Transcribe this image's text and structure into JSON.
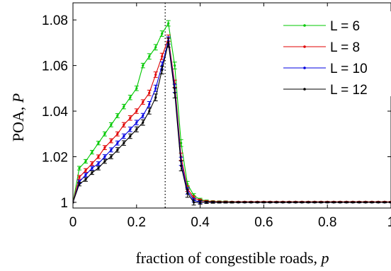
{
  "chart_data": {
    "type": "line",
    "xlabel_text": "fraction of congestible roads, ",
    "xlabel_var": "p",
    "ylabel_text": "POA, ",
    "ylabel_var": "P",
    "xlim": [
      0,
      1
    ],
    "ylim": [
      0.9975,
      1.0875
    ],
    "xticks": [
      0,
      0.2,
      0.4,
      0.6,
      0.8,
      1
    ],
    "xtick_labels": [
      "0",
      "0.2",
      "0.4",
      "0.6",
      "0.8",
      "1"
    ],
    "yticks": [
      1,
      1.02,
      1.04,
      1.06,
      1.08
    ],
    "ytick_labels": [
      "1",
      "1.02",
      "1.04",
      "1.06",
      "1.08"
    ],
    "vline_x": 0.29,
    "legend_position": "top-right",
    "series": [
      {
        "name": "L = 6",
        "color": "#00c800",
        "x": [
          0,
          0.02,
          0.04,
          0.06,
          0.08,
          0.1,
          0.12,
          0.14,
          0.16,
          0.18,
          0.2,
          0.22,
          0.24,
          0.26,
          0.28,
          0.3,
          0.32,
          0.34,
          0.36,
          0.38,
          0.4,
          0.42,
          0.44,
          0.46,
          0.48,
          0.5,
          0.52,
          0.54,
          0.56,
          0.58,
          0.6,
          0.62,
          0.64,
          0.66,
          0.68,
          0.7,
          0.72,
          0.74,
          0.76,
          0.78,
          0.8,
          0.82,
          0.84,
          0.86,
          0.88,
          0.9,
          0.92,
          0.94,
          0.96,
          0.98,
          1
        ],
        "y": [
          1.0,
          1.015,
          1.018,
          1.022,
          1.026,
          1.03,
          1.034,
          1.038,
          1.042,
          1.046,
          1.05,
          1.06,
          1.064,
          1.068,
          1.074,
          1.0785,
          1.06,
          1.026,
          1.008,
          1.003,
          1.0012,
          1.0006,
          1.0004,
          1.0003,
          1.0003,
          1.0002,
          1.0002,
          1.0002,
          1.0002,
          1.0002,
          1.0002,
          1.0002,
          1.0002,
          1.0002,
          1.0002,
          1.0002,
          1.0002,
          1.0002,
          1.0002,
          1.0002,
          1.0002,
          1.0002,
          1.0002,
          1.0002,
          1.0002,
          1.0002,
          1.0002,
          1.0002,
          1.0002,
          1.0002,
          1.0002
        ],
        "err": [
          0,
          0.0008,
          0.0008,
          0.0008,
          0.0008,
          0.0009,
          0.0009,
          0.0009,
          0.001,
          0.001,
          0.001,
          0.001,
          0.0012,
          0.0012,
          0.0012,
          0.0012,
          0.0015,
          0.0015,
          0.0012,
          0.0008,
          0.0006,
          0.0004,
          0.0003,
          0.0003,
          0.0003,
          0.0002,
          0.0002,
          0.0002,
          0.0002,
          0.0002,
          0.0002,
          0.0002,
          0.0002,
          0.0002,
          0.0002,
          0.0002,
          0.0002,
          0.0002,
          0.0002,
          0.0002,
          0.0002,
          0.0002,
          0.0002,
          0.0002,
          0.0002,
          0.0002,
          0.0002,
          0.0002,
          0.0002,
          0.0002,
          0.0002
        ]
      },
      {
        "name": "L = 8",
        "color": "#e00000",
        "x": [
          0,
          0.02,
          0.04,
          0.06,
          0.08,
          0.1,
          0.12,
          0.14,
          0.16,
          0.18,
          0.2,
          0.22,
          0.24,
          0.26,
          0.28,
          0.3,
          0.32,
          0.34,
          0.36,
          0.38,
          0.4,
          0.42,
          0.44,
          0.46,
          0.48,
          0.5,
          0.52,
          0.54,
          0.56,
          0.58,
          0.6,
          0.62,
          0.64,
          0.66,
          0.68,
          0.7,
          0.72,
          0.74,
          0.76,
          0.78,
          0.8,
          0.82,
          0.84,
          0.86,
          0.88,
          0.9,
          0.92,
          0.94,
          0.96,
          0.98,
          1
        ],
        "y": [
          1.0,
          1.011,
          1.014,
          1.017,
          1.02,
          1.024,
          1.027,
          1.03,
          1.034,
          1.037,
          1.04,
          1.044,
          1.048,
          1.056,
          1.064,
          1.072,
          1.052,
          1.02,
          1.006,
          1.002,
          1.0008,
          1.0004,
          1.0003,
          1.0002,
          1.0002,
          1.0002,
          1.0002,
          1.0002,
          1.0002,
          1.0002,
          1.0002,
          1.0002,
          1.0002,
          1.0002,
          1.0002,
          1.0002,
          1.0002,
          1.0002,
          1.0002,
          1.0002,
          1.0002,
          1.0002,
          1.0002,
          1.0002,
          1.0002,
          1.0002,
          1.0002,
          1.0002,
          1.0002,
          1.0002,
          1.0002
        ],
        "err": [
          0,
          0.0008,
          0.0008,
          0.0008,
          0.0008,
          0.0009,
          0.0009,
          0.0009,
          0.001,
          0.001,
          0.001,
          0.001,
          0.0012,
          0.0012,
          0.0014,
          0.0014,
          0.0016,
          0.0016,
          0.0012,
          0.0008,
          0.0006,
          0.0004,
          0.0003,
          0.0003,
          0.0003,
          0.0002,
          0.0002,
          0.0002,
          0.0002,
          0.0002,
          0.0002,
          0.0002,
          0.0002,
          0.0002,
          0.0002,
          0.0002,
          0.0002,
          0.0002,
          0.0002,
          0.0002,
          0.0002,
          0.0002,
          0.0002,
          0.0002,
          0.0002,
          0.0002,
          0.0002,
          0.0002,
          0.0002,
          0.0002,
          0.0002
        ]
      },
      {
        "name": "L = 10",
        "color": "#0000e0",
        "x": [
          0,
          0.02,
          0.04,
          0.06,
          0.08,
          0.1,
          0.12,
          0.14,
          0.16,
          0.18,
          0.2,
          0.22,
          0.24,
          0.26,
          0.28,
          0.3,
          0.32,
          0.34,
          0.36,
          0.38,
          0.4,
          0.42,
          0.44,
          0.46,
          0.48,
          0.5,
          0.52,
          0.54,
          0.56,
          0.58,
          0.6,
          0.62,
          0.64,
          0.66,
          0.68,
          0.7,
          0.72,
          0.74,
          0.76,
          0.78,
          0.8,
          0.82,
          0.84,
          0.86,
          0.88,
          0.9,
          0.92,
          0.94,
          0.96,
          0.98,
          1
        ],
        "y": [
          1.0,
          1.009,
          1.012,
          1.015,
          1.017,
          1.02,
          1.023,
          1.026,
          1.029,
          1.032,
          1.035,
          1.038,
          1.043,
          1.05,
          1.06,
          1.071,
          1.05,
          1.018,
          1.005,
          1.001,
          1.0,
          1.0,
          1.0,
          1.0,
          1.0,
          1.0,
          1.0,
          1.0,
          1.0,
          1.0,
          1.0,
          1.0,
          1.0,
          1.0,
          1.0,
          1.0,
          1.0,
          1.0,
          1.0,
          1.0,
          1.0,
          1.0,
          1.0,
          1.0,
          1.0,
          1.0,
          1.0,
          1.0,
          1.0,
          1.0,
          1.0
        ],
        "err": [
          0,
          0.0008,
          0.0008,
          0.0008,
          0.0008,
          0.0009,
          0.0009,
          0.0009,
          0.001,
          0.001,
          0.001,
          0.001,
          0.0012,
          0.0014,
          0.0016,
          0.0016,
          0.0018,
          0.0018,
          0.0014,
          0.0008,
          0.0006,
          0.0004,
          0.0003,
          0.0003,
          0.0003,
          0.0002,
          0.0002,
          0.0002,
          0.0002,
          0.0002,
          0.0002,
          0.0002,
          0.0002,
          0.0002,
          0.0002,
          0.0002,
          0.0002,
          0.0002,
          0.0002,
          0.0002,
          0.0002,
          0.0002,
          0.0002,
          0.0002,
          0.0002,
          0.0002,
          0.0002,
          0.0002,
          0.0002,
          0.0002,
          0.0002
        ]
      },
      {
        "name": "L = 12",
        "color": "#000000",
        "x": [
          0,
          0.02,
          0.04,
          0.06,
          0.08,
          0.1,
          0.12,
          0.14,
          0.16,
          0.18,
          0.2,
          0.22,
          0.24,
          0.26,
          0.28,
          0.3,
          0.32,
          0.34,
          0.36,
          0.38,
          0.4,
          0.42,
          0.44,
          0.46,
          0.48,
          0.5,
          0.52,
          0.54,
          0.56,
          0.58,
          0.6,
          0.62,
          0.64,
          0.66,
          0.68,
          0.7,
          0.72,
          0.74,
          0.76,
          0.78,
          0.8,
          0.82,
          0.84,
          0.86,
          0.88,
          0.9,
          0.92,
          0.94,
          0.96,
          0.98,
          1
        ],
        "y": [
          1.0,
          1.008,
          1.01,
          1.013,
          1.015,
          1.018,
          1.02,
          1.023,
          1.026,
          1.029,
          1.032,
          1.035,
          1.04,
          1.046,
          1.058,
          1.07,
          1.048,
          1.016,
          1.004,
          1.0,
          1.0,
          1.0,
          1.0,
          1.0,
          1.0,
          1.0,
          1.0,
          1.0,
          1.0,
          1.0,
          1.0,
          1.0,
          1.0,
          1.0,
          1.0,
          1.0,
          1.0,
          1.0,
          1.0,
          1.0,
          1.0,
          1.0,
          1.0,
          1.0,
          1.0,
          1.0,
          1.0,
          1.0,
          1.0,
          1.0,
          1.0
        ],
        "err": [
          0,
          0.0008,
          0.0008,
          0.0008,
          0.0008,
          0.0009,
          0.0009,
          0.001,
          0.001,
          0.001,
          0.0011,
          0.0012,
          0.0013,
          0.0015,
          0.0017,
          0.002,
          0.0022,
          0.0022,
          0.0018,
          0.0012,
          0.0008,
          0.0005,
          0.0004,
          0.0003,
          0.0003,
          0.0003,
          0.0002,
          0.0002,
          0.0002,
          0.0002,
          0.0002,
          0.0002,
          0.0002,
          0.0002,
          0.0002,
          0.0002,
          0.0002,
          0.0002,
          0.0002,
          0.0002,
          0.0002,
          0.0002,
          0.0002,
          0.0002,
          0.0002,
          0.0002,
          0.0002,
          0.0002,
          0.0002,
          0.0002,
          0.0002
        ]
      }
    ]
  }
}
